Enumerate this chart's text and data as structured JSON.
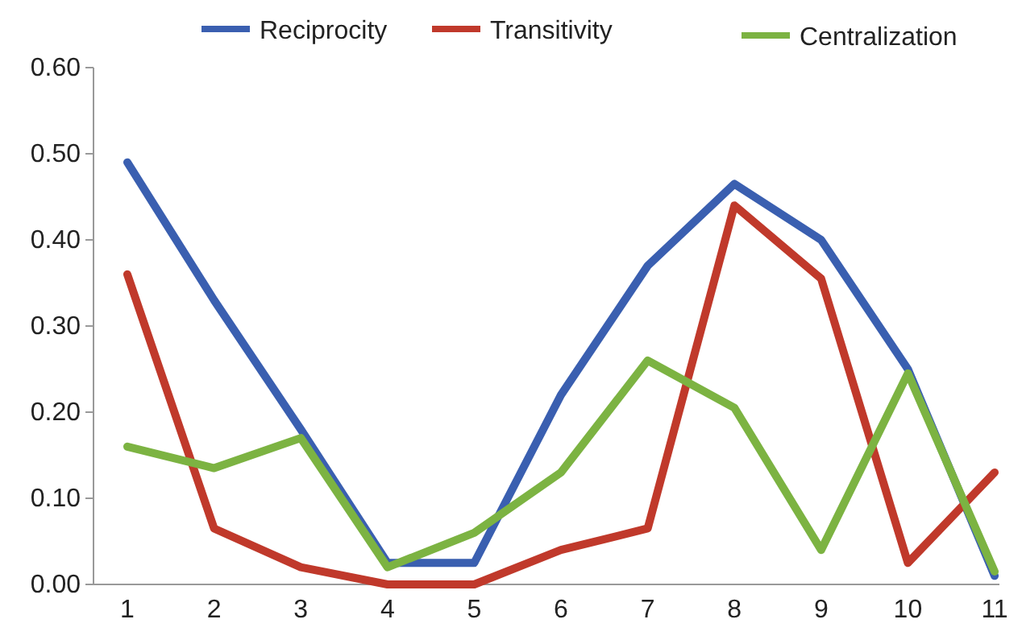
{
  "chart_data": {
    "type": "line",
    "categories": [
      "1",
      "2",
      "3",
      "4",
      "5",
      "6",
      "7",
      "8",
      "9",
      "10",
      "11"
    ],
    "series": [
      {
        "name": "Reciprocity",
        "color": "#3a5fb0",
        "values": [
          0.49,
          0.33,
          0.18,
          0.025,
          0.025,
          0.22,
          0.37,
          0.465,
          0.4,
          0.25,
          0.01
        ]
      },
      {
        "name": "Transitivity",
        "color": "#c0392b",
        "values": [
          0.36,
          0.065,
          0.02,
          0.0,
          0.0,
          0.04,
          0.065,
          0.44,
          0.355,
          0.025,
          0.13
        ]
      },
      {
        "name": "Centralization",
        "color": "#7cb342",
        "values": [
          0.16,
          0.135,
          0.17,
          0.02,
          0.06,
          0.13,
          0.26,
          0.205,
          0.04,
          0.245,
          0.015
        ]
      }
    ],
    "ylim": [
      0,
      0.6
    ],
    "yticks": [
      {
        "value": 0,
        "label": "0.00"
      },
      {
        "value": 0.1,
        "label": "0.10"
      },
      {
        "value": 0.2,
        "label": "0.20"
      },
      {
        "value": 0.3,
        "label": "0.30"
      },
      {
        "value": 0.4,
        "label": "0.40"
      },
      {
        "value": 0.5,
        "label": "0.50"
      },
      {
        "value": 0.6,
        "label": "0.60"
      }
    ],
    "legend": "top",
    "marker": "none",
    "line_style": "solid",
    "grid": false
  }
}
